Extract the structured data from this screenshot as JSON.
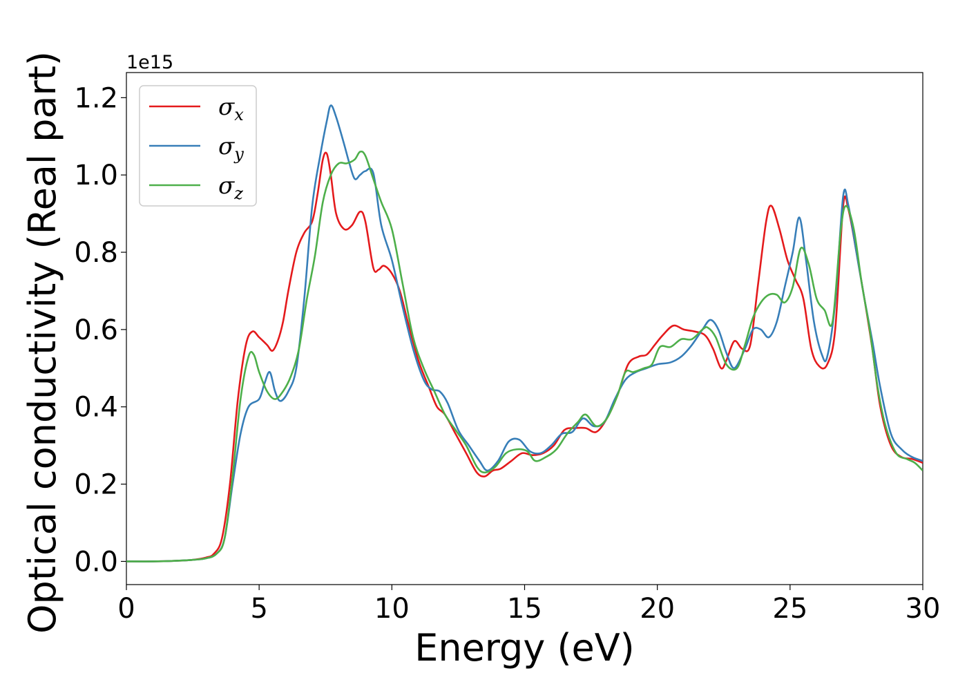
{
  "chart_data": {
    "type": "line",
    "title": "",
    "xlabel": "Energy (eV)",
    "ylabel": "Optical conductivity (Real part)",
    "y_offset_label": "1e15",
    "xlim": [
      0,
      30
    ],
    "ylim": [
      -0.06,
      1.265
    ],
    "xticks": [
      0,
      5,
      10,
      15,
      20,
      25,
      30
    ],
    "yticks": [
      0.0,
      0.2,
      0.4,
      0.6,
      0.8,
      1.0,
      1.2
    ],
    "xtick_labels": [
      "0",
      "5",
      "10",
      "15",
      "20",
      "25",
      "30"
    ],
    "ytick_labels": [
      "0.0",
      "0.2",
      "0.4",
      "0.6",
      "0.8",
      "1.0",
      "1.2"
    ],
    "grid": false,
    "legend_position": "top-left",
    "series": [
      {
        "name": "x",
        "legend_symbol": "σ",
        "color": "#e41a1c",
        "points": [
          [
            0,
            0.0
          ],
          [
            1,
            0.0
          ],
          [
            2,
            0.002
          ],
          [
            2.5,
            0.004
          ],
          [
            3,
            0.01
          ],
          [
            3.3,
            0.02
          ],
          [
            3.6,
            0.06
          ],
          [
            3.9,
            0.2
          ],
          [
            4.2,
            0.42
          ],
          [
            4.5,
            0.56
          ],
          [
            4.75,
            0.595
          ],
          [
            5,
            0.58
          ],
          [
            5.3,
            0.56
          ],
          [
            5.5,
            0.545
          ],
          [
            5.7,
            0.57
          ],
          [
            5.9,
            0.62
          ],
          [
            6.1,
            0.7
          ],
          [
            6.4,
            0.8
          ],
          [
            6.7,
            0.85
          ],
          [
            7,
            0.88
          ],
          [
            7.2,
            0.95
          ],
          [
            7.4,
            1.04
          ],
          [
            7.55,
            1.055
          ],
          [
            7.7,
            1.0
          ],
          [
            7.9,
            0.9
          ],
          [
            8.2,
            0.86
          ],
          [
            8.5,
            0.87
          ],
          [
            8.8,
            0.905
          ],
          [
            9,
            0.88
          ],
          [
            9.3,
            0.76
          ],
          [
            9.5,
            0.755
          ],
          [
            9.7,
            0.765
          ],
          [
            10,
            0.745
          ],
          [
            10.3,
            0.7
          ],
          [
            10.6,
            0.62
          ],
          [
            11,
            0.52
          ],
          [
            11.4,
            0.45
          ],
          [
            11.7,
            0.4
          ],
          [
            12,
            0.38
          ],
          [
            12.4,
            0.33
          ],
          [
            12.8,
            0.28
          ],
          [
            13.2,
            0.23
          ],
          [
            13.5,
            0.22
          ],
          [
            13.8,
            0.235
          ],
          [
            14.1,
            0.24
          ],
          [
            14.5,
            0.26
          ],
          [
            14.9,
            0.28
          ],
          [
            15.3,
            0.275
          ],
          [
            15.7,
            0.28
          ],
          [
            16.1,
            0.3
          ],
          [
            16.5,
            0.34
          ],
          [
            16.9,
            0.345
          ],
          [
            17.3,
            0.345
          ],
          [
            17.7,
            0.335
          ],
          [
            18.1,
            0.37
          ],
          [
            18.5,
            0.43
          ],
          [
            18.9,
            0.51
          ],
          [
            19.3,
            0.53
          ],
          [
            19.6,
            0.535
          ],
          [
            19.9,
            0.56
          ],
          [
            20.2,
            0.585
          ],
          [
            20.6,
            0.61
          ],
          [
            21,
            0.6
          ],
          [
            21.4,
            0.595
          ],
          [
            21.8,
            0.585
          ],
          [
            22.1,
            0.55
          ],
          [
            22.4,
            0.5
          ],
          [
            22.6,
            0.52
          ],
          [
            22.9,
            0.57
          ],
          [
            23.2,
            0.55
          ],
          [
            23.5,
            0.56
          ],
          [
            23.8,
            0.72
          ],
          [
            24.1,
            0.88
          ],
          [
            24.3,
            0.92
          ],
          [
            24.6,
            0.86
          ],
          [
            24.9,
            0.78
          ],
          [
            25.2,
            0.73
          ],
          [
            25.5,
            0.68
          ],
          [
            25.8,
            0.55
          ],
          [
            26.1,
            0.505
          ],
          [
            26.4,
            0.51
          ],
          [
            26.7,
            0.6
          ],
          [
            27,
            0.92
          ],
          [
            27.2,
            0.91
          ],
          [
            27.5,
            0.8
          ],
          [
            27.8,
            0.68
          ],
          [
            28.1,
            0.55
          ],
          [
            28.4,
            0.4
          ],
          [
            28.8,
            0.3
          ],
          [
            29.2,
            0.27
          ],
          [
            29.6,
            0.265
          ],
          [
            30,
            0.255
          ]
        ]
      },
      {
        "name": "y",
        "legend_symbol": "σ",
        "color": "#377eb8",
        "points": [
          [
            0,
            0.0
          ],
          [
            1,
            0.0
          ],
          [
            2,
            0.002
          ],
          [
            2.5,
            0.004
          ],
          [
            3,
            0.008
          ],
          [
            3.4,
            0.02
          ],
          [
            3.7,
            0.06
          ],
          [
            4,
            0.2
          ],
          [
            4.3,
            0.33
          ],
          [
            4.6,
            0.4
          ],
          [
            5,
            0.42
          ],
          [
            5.2,
            0.46
          ],
          [
            5.4,
            0.49
          ],
          [
            5.6,
            0.44
          ],
          [
            5.8,
            0.415
          ],
          [
            6.1,
            0.44
          ],
          [
            6.4,
            0.5
          ],
          [
            6.7,
            0.68
          ],
          [
            7,
            0.92
          ],
          [
            7.3,
            1.05
          ],
          [
            7.55,
            1.14
          ],
          [
            7.7,
            1.18
          ],
          [
            7.9,
            1.15
          ],
          [
            8.2,
            1.08
          ],
          [
            8.4,
            1.03
          ],
          [
            8.6,
            0.99
          ],
          [
            8.8,
            1.0
          ],
          [
            9,
            1.01
          ],
          [
            9.3,
            1.005
          ],
          [
            9.6,
            0.87
          ],
          [
            10,
            0.78
          ],
          [
            10.4,
            0.66
          ],
          [
            10.8,
            0.55
          ],
          [
            11.2,
            0.47
          ],
          [
            11.5,
            0.445
          ],
          [
            11.8,
            0.44
          ],
          [
            12.1,
            0.41
          ],
          [
            12.5,
            0.34
          ],
          [
            12.9,
            0.3
          ],
          [
            13.3,
            0.26
          ],
          [
            13.6,
            0.235
          ],
          [
            14,
            0.26
          ],
          [
            14.4,
            0.31
          ],
          [
            14.8,
            0.315
          ],
          [
            15.2,
            0.285
          ],
          [
            15.6,
            0.28
          ],
          [
            16,
            0.3
          ],
          [
            16.4,
            0.33
          ],
          [
            16.8,
            0.335
          ],
          [
            17.2,
            0.37
          ],
          [
            17.6,
            0.35
          ],
          [
            18,
            0.36
          ],
          [
            18.4,
            0.42
          ],
          [
            18.8,
            0.47
          ],
          [
            19.2,
            0.49
          ],
          [
            19.6,
            0.5
          ],
          [
            20,
            0.51
          ],
          [
            20.5,
            0.515
          ],
          [
            20.9,
            0.53
          ],
          [
            21.3,
            0.56
          ],
          [
            21.7,
            0.6
          ],
          [
            22,
            0.625
          ],
          [
            22.3,
            0.6
          ],
          [
            22.6,
            0.54
          ],
          [
            22.9,
            0.5
          ],
          [
            23.3,
            0.55
          ],
          [
            23.6,
            0.6
          ],
          [
            23.9,
            0.6
          ],
          [
            24.2,
            0.58
          ],
          [
            24.5,
            0.62
          ],
          [
            24.8,
            0.71
          ],
          [
            25.1,
            0.8
          ],
          [
            25.35,
            0.89
          ],
          [
            25.6,
            0.78
          ],
          [
            25.9,
            0.62
          ],
          [
            26.2,
            0.535
          ],
          [
            26.4,
            0.53
          ],
          [
            26.7,
            0.67
          ],
          [
            27,
            0.945
          ],
          [
            27.2,
            0.92
          ],
          [
            27.5,
            0.8
          ],
          [
            27.8,
            0.68
          ],
          [
            28.1,
            0.57
          ],
          [
            28.4,
            0.45
          ],
          [
            28.8,
            0.33
          ],
          [
            29.2,
            0.29
          ],
          [
            29.6,
            0.27
          ],
          [
            30,
            0.26
          ]
        ]
      },
      {
        "name": "z",
        "legend_symbol": "σ",
        "color": "#4daf4a",
        "points": [
          [
            0,
            0.0
          ],
          [
            1,
            0.0
          ],
          [
            2,
            0.002
          ],
          [
            2.5,
            0.004
          ],
          [
            3,
            0.008
          ],
          [
            3.4,
            0.02
          ],
          [
            3.7,
            0.06
          ],
          [
            4,
            0.22
          ],
          [
            4.3,
            0.42
          ],
          [
            4.6,
            0.53
          ],
          [
            4.8,
            0.535
          ],
          [
            5,
            0.49
          ],
          [
            5.3,
            0.44
          ],
          [
            5.6,
            0.42
          ],
          [
            5.9,
            0.44
          ],
          [
            6.2,
            0.48
          ],
          [
            6.5,
            0.55
          ],
          [
            6.8,
            0.68
          ],
          [
            7.1,
            0.79
          ],
          [
            7.4,
            0.93
          ],
          [
            7.7,
            1.0
          ],
          [
            8,
            1.03
          ],
          [
            8.3,
            1.03
          ],
          [
            8.6,
            1.04
          ],
          [
            8.8,
            1.06
          ],
          [
            9,
            1.05
          ],
          [
            9.3,
            0.99
          ],
          [
            9.6,
            0.93
          ],
          [
            10,
            0.86
          ],
          [
            10.4,
            0.72
          ],
          [
            10.8,
            0.58
          ],
          [
            11.2,
            0.5
          ],
          [
            11.6,
            0.44
          ],
          [
            12,
            0.38
          ],
          [
            12.4,
            0.34
          ],
          [
            12.8,
            0.3
          ],
          [
            13.2,
            0.245
          ],
          [
            13.5,
            0.23
          ],
          [
            13.9,
            0.245
          ],
          [
            14.3,
            0.28
          ],
          [
            14.7,
            0.29
          ],
          [
            15.1,
            0.285
          ],
          [
            15.4,
            0.26
          ],
          [
            15.8,
            0.27
          ],
          [
            16.2,
            0.29
          ],
          [
            16.6,
            0.33
          ],
          [
            17,
            0.36
          ],
          [
            17.3,
            0.38
          ],
          [
            17.7,
            0.35
          ],
          [
            18.1,
            0.37
          ],
          [
            18.5,
            0.43
          ],
          [
            18.8,
            0.49
          ],
          [
            19.1,
            0.49
          ],
          [
            19.5,
            0.5
          ],
          [
            19.8,
            0.51
          ],
          [
            20.1,
            0.555
          ],
          [
            20.5,
            0.555
          ],
          [
            20.9,
            0.575
          ],
          [
            21.3,
            0.575
          ],
          [
            21.7,
            0.6
          ],
          [
            21.9,
            0.605
          ],
          [
            22.2,
            0.58
          ],
          [
            22.6,
            0.51
          ],
          [
            23,
            0.5
          ],
          [
            23.3,
            0.56
          ],
          [
            23.6,
            0.63
          ],
          [
            23.9,
            0.67
          ],
          [
            24.2,
            0.69
          ],
          [
            24.5,
            0.69
          ],
          [
            24.8,
            0.67
          ],
          [
            25.1,
            0.71
          ],
          [
            25.4,
            0.81
          ],
          [
            25.7,
            0.77
          ],
          [
            26,
            0.68
          ],
          [
            26.3,
            0.65
          ],
          [
            26.6,
            0.62
          ],
          [
            26.9,
            0.85
          ],
          [
            27.1,
            0.92
          ],
          [
            27.4,
            0.86
          ],
          [
            27.7,
            0.72
          ],
          [
            28,
            0.6
          ],
          [
            28.3,
            0.45
          ],
          [
            28.6,
            0.35
          ],
          [
            29,
            0.28
          ],
          [
            29.4,
            0.265
          ],
          [
            29.7,
            0.255
          ],
          [
            30,
            0.235
          ]
        ]
      }
    ]
  }
}
